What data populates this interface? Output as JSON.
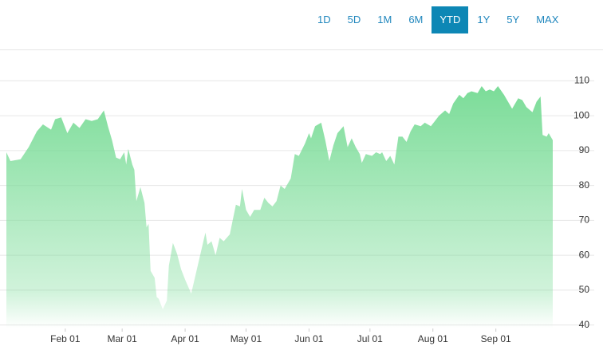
{
  "range_buttons": [
    "1D",
    "5D",
    "1M",
    "6M",
    "YTD",
    "1Y",
    "5Y",
    "MAX"
  ],
  "active_range": "YTD",
  "chart_data": {
    "type": "area",
    "color": "#7bdc98",
    "grid": true,
    "x": [
      "Jan 03",
      "Jan 05",
      "Jan 10",
      "Jan 14",
      "Jan 18",
      "Jan 21",
      "Jan 25",
      "Jan 27",
      "Jan 30",
      "Feb 02",
      "Feb 05",
      "Feb 08",
      "Feb 11",
      "Feb 14",
      "Feb 17",
      "Feb 20",
      "Feb 22",
      "Feb 24",
      "Feb 26",
      "Feb 28",
      "Mar 02",
      "Mar 03",
      "Mar 04",
      "Mar 06",
      "Mar 07",
      "Mar 08",
      "Mar 10",
      "Mar 12",
      "Mar 13",
      "Mar 14",
      "Mar 15",
      "Mar 17",
      "Mar 18",
      "Mar 19",
      "Mar 21",
      "Mar 23",
      "Mar 24",
      "Mar 26",
      "Mar 28",
      "Mar 30",
      "Apr 01",
      "Apr 04",
      "Apr 06",
      "Apr 08",
      "Apr 11",
      "Apr 12",
      "Apr 14",
      "Apr 16",
      "Apr 18",
      "Apr 20",
      "Apr 23",
      "Apr 26",
      "Apr 28",
      "Apr 29",
      "May 01",
      "May 03",
      "May 05",
      "May 08",
      "May 10",
      "May 12",
      "May 14",
      "May 16",
      "May 18",
      "May 20",
      "May 23",
      "May 25",
      "May 27",
      "May 30",
      "Jun 01",
      "Jun 02",
      "Jun 04",
      "Jun 07",
      "Jun 09",
      "Jun 11",
      "Jun 13",
      "Jun 15",
      "Jun 18",
      "Jun 20",
      "Jun 22",
      "Jun 24",
      "Jun 26",
      "Jun 27",
      "Jun 29",
      "Jul 02",
      "Jul 04",
      "Jul 06",
      "Jul 07",
      "Jul 09",
      "Jul 11",
      "Jul 13",
      "Jul 15",
      "Jul 17",
      "Jul 19",
      "Jul 21",
      "Jul 23",
      "Jul 26",
      "Jul 28",
      "Jul 31",
      "Aug 02",
      "Aug 04",
      "Aug 07",
      "Aug 09",
      "Aug 11",
      "Aug 14",
      "Aug 16",
      "Aug 18",
      "Aug 20",
      "Aug 23",
      "Aug 25",
      "Aug 27",
      "Aug 29",
      "Aug 31",
      "Sep 02",
      "Sep 05",
      "Sep 07",
      "Sep 09",
      "Sep 12",
      "Sep 14",
      "Sep 16",
      "Sep 19",
      "Sep 21",
      "Sep 23",
      "Sep 24",
      "Sep 26",
      "Sep 27",
      "Sep 29"
    ],
    "values": [
      89.5,
      87,
      87.5,
      91,
      95.5,
      97.5,
      96,
      99,
      99.5,
      95,
      98,
      96.5,
      99,
      98.5,
      99,
      101.5,
      97,
      93,
      88,
      87.5,
      89.5,
      86,
      90.5,
      86,
      84.5,
      75.5,
      79.5,
      75,
      68,
      69,
      55.5,
      53.5,
      48,
      47.5,
      44.5,
      47,
      57,
      63.5,
      60.5,
      56,
      53,
      49,
      54,
      59,
      66.5,
      63,
      64,
      60,
      65,
      64,
      66,
      74.5,
      74,
      79,
      73,
      71,
      73,
      73,
      76.5,
      75,
      74,
      75.5,
      80,
      79,
      82,
      89,
      88.5,
      92,
      95,
      93.5,
      97,
      98,
      93,
      87,
      91.5,
      95,
      97,
      91,
      93.5,
      91,
      89,
      86.5,
      89,
      88.5,
      89.5,
      89,
      89.5,
      87,
      88.5,
      86,
      94,
      94,
      92.5,
      95.5,
      97.5,
      97,
      98,
      97,
      98.5,
      100,
      101.5,
      100.5,
      103.5,
      106,
      105,
      106.5,
      107,
      106.5,
      108.5,
      107,
      107.5,
      107,
      108.5,
      106,
      104,
      102,
      105,
      104.5,
      102.5,
      101,
      104,
      105.5,
      94.5,
      94,
      95,
      93
    ],
    "xlim": [
      "Jan 03",
      "Sep 29"
    ],
    "xticks": [
      "Feb 01",
      "Mar 01",
      "Apr 01",
      "May 01",
      "Jun 01",
      "Jul 01",
      "Aug 01",
      "Sep 01"
    ],
    "ylim": [
      39,
      119
    ],
    "yticks": [
      40,
      50,
      60,
      70,
      80,
      90,
      100,
      110
    ]
  }
}
